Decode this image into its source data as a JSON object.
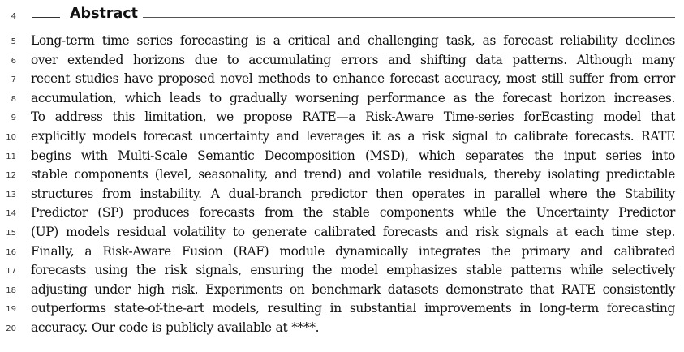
{
  "heading": {
    "line_number": "4",
    "title": "Abstract"
  },
  "lines": [
    {
      "number": "5",
      "text": "Long-term time series forecasting is a critical and challenging task, as forecast reliability declines"
    },
    {
      "number": "6",
      "text": "over extended horizons due to accumulating errors and shifting data patterns. Although many"
    },
    {
      "number": "7",
      "text": "recent studies have proposed novel methods to enhance forecast accuracy, most still suffer from error"
    },
    {
      "number": "8",
      "text": "accumulation, which leads to gradually worsening performance as the forecast horizon increases."
    },
    {
      "number": "9",
      "text": "To address this limitation, we propose RATE—a Risk-Aware Time-series forEcasting model that"
    },
    {
      "number": "10",
      "text": "explicitly models forecast uncertainty and leverages it as a risk signal to calibrate forecasts. RATE"
    },
    {
      "number": "11",
      "text": "begins with Multi-Scale Semantic Decomposition (MSD), which separates the input series into"
    },
    {
      "number": "12",
      "text": "stable components (level, seasonality, and trend) and volatile residuals, thereby isolating predictable"
    },
    {
      "number": "13",
      "text": "structures from instability. A dual-branch predictor then operates in parallel where the Stability"
    },
    {
      "number": "14",
      "text": "Predictor (SP) produces forecasts from the stable components while the Uncertainty Predictor"
    },
    {
      "number": "15",
      "text": "(UP) models residual volatility to generate calibrated forecasts and risk signals at each time step."
    },
    {
      "number": "16",
      "text": "Finally, a Risk-Aware Fusion (RAF) module dynamically integrates the primary and calibrated"
    },
    {
      "number": "17",
      "text": "forecasts using the risk signals, ensuring the model emphasizes stable patterns while selectively"
    },
    {
      "number": "18",
      "text": "adjusting under high risk. Experiments on benchmark datasets demonstrate that RATE consistently"
    },
    {
      "number": "19",
      "text": "outperforms state-of-the-art models, resulting in substantial improvements in long-term forecasting"
    },
    {
      "number": "20",
      "text": "accuracy. Our code is publicly available at ****."
    }
  ]
}
